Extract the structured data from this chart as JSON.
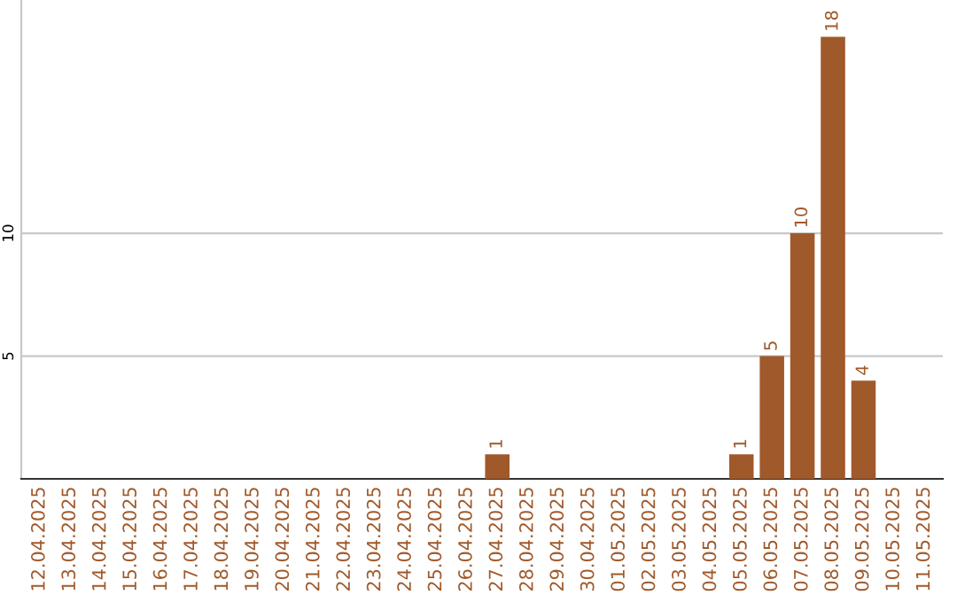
{
  "chart_data": {
    "type": "bar",
    "categories": [
      "12.04.2025",
      "13.04.2025",
      "14.04.2025",
      "15.04.2025",
      "16.04.2025",
      "17.04.2025",
      "18.04.2025",
      "19.04.2025",
      "20.04.2025",
      "21.04.2025",
      "22.04.2025",
      "23.04.2025",
      "24.04.2025",
      "25.04.2025",
      "26.04.2025",
      "27.04.2025",
      "28.04.2025",
      "29.04.2025",
      "30.04.2025",
      "01.05.2025",
      "02.05.2025",
      "03.05.2025",
      "04.05.2025",
      "05.05.2025",
      "06.05.2025",
      "07.05.2025",
      "08.05.2025",
      "09.05.2025",
      "10.05.2025",
      "11.05.2025"
    ],
    "values": [
      0,
      0,
      0,
      0,
      0,
      0,
      0,
      0,
      0,
      0,
      0,
      0,
      0,
      0,
      0,
      1,
      0,
      0,
      0,
      0,
      0,
      0,
      0,
      1,
      5,
      10,
      18,
      4,
      0,
      0
    ],
    "value_labels": [
      null,
      null,
      null,
      null,
      null,
      null,
      null,
      null,
      null,
      null,
      null,
      null,
      null,
      null,
      null,
      "1",
      null,
      null,
      null,
      null,
      null,
      null,
      null,
      "1",
      "5",
      "10",
      "18",
      "4",
      null,
      null
    ],
    "color": "#a0592b",
    "ylim": [
      0,
      19.5
    ],
    "yticks": [
      5,
      10
    ],
    "grid": "y"
  }
}
